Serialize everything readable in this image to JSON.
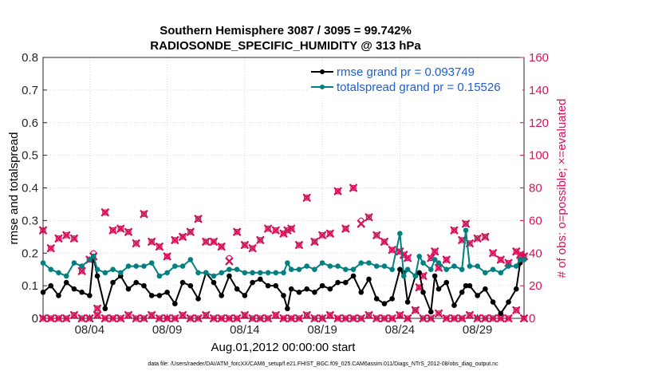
{
  "chart_data": {
    "type": "line",
    "title": "Southern Hemisphere 3087 / 3095 = 99.742%",
    "subtitle": "RADIOSONDE_SPECIFIC_HUMIDITY @ 313 hPa",
    "xlabel": "Aug.01,2012 00:00:00 start",
    "ylabel": "rmse and totalspread",
    "y2label": "# of obs: o=possible; ×=evaluated",
    "footnote": "data file: /Users/raeder/DAI/ATM_forcXX/CAM6_setup/f.e21.FHIST_BGC.f09_025.CAM6assim.011/Diags_NTrS_2012-08/obs_diag_output.nc",
    "xlim": [
      1.0,
      32.0
    ],
    "ylim": [
      0,
      0.8
    ],
    "y2lim": [
      0,
      160
    ],
    "x_tick_values": [
      4,
      9,
      14,
      19,
      24,
      29
    ],
    "x_tick_labels": [
      "08/04",
      "08/09",
      "08/14",
      "08/19",
      "08/24",
      "08/29"
    ],
    "y_tick_labels": [
      "0",
      "0.1",
      "0.2",
      "0.3",
      "0.4",
      "0.5",
      "0.6",
      "0.7",
      "0.8"
    ],
    "y2_tick_labels": [
      "0",
      "20",
      "40",
      "60",
      "80",
      "100",
      "120",
      "140",
      "160"
    ],
    "colors": {
      "rmse": "#000000",
      "spread": "#008080",
      "obs": "#d6135a",
      "legend_text": "#1f5fcf"
    },
    "series": [
      {
        "name": "rmse",
        "legend": "rmse grand pr = 0.093749",
        "axis": "left",
        "x": [
          1.0,
          1.5,
          2.0,
          2.5,
          3.0,
          3.5,
          4.0,
          4.25,
          4.5,
          5.0,
          5.5,
          6.0,
          6.5,
          7.0,
          7.5,
          8.0,
          8.5,
          9.0,
          9.5,
          10.0,
          10.5,
          11.0,
          11.5,
          12.0,
          12.5,
          13.0,
          13.5,
          14.0,
          14.5,
          15.0,
          15.5,
          16.0,
          16.5,
          16.75,
          17.0,
          17.5,
          18.0,
          18.5,
          19.0,
          19.5,
          20.0,
          20.5,
          21.0,
          21.5,
          22.0,
          22.5,
          23.0,
          23.5,
          24.0,
          24.25,
          24.5,
          25.0,
          25.25,
          25.5,
          26.0,
          26.25,
          26.5,
          27.0,
          27.5,
          28.0,
          28.25,
          28.5,
          29.0,
          29.5,
          30.0,
          30.5,
          31.0,
          31.5,
          31.75,
          32.0
        ],
        "values": [
          0.08,
          0.1,
          0.07,
          0.11,
          0.09,
          0.08,
          0.07,
          0.19,
          0.13,
          0.03,
          0.11,
          0.13,
          0.09,
          0.11,
          0.1,
          0.07,
          0.07,
          0.08,
          0.045,
          0.11,
          0.1,
          0.06,
          0.14,
          0.11,
          0.07,
          0.13,
          0.09,
          0.07,
          0.11,
          0.12,
          0.1,
          0.1,
          0.07,
          0.03,
          0.09,
          0.08,
          0.09,
          0.08,
          0.1,
          0.09,
          0.11,
          0.11,
          0.13,
          0.08,
          0.12,
          0.06,
          0.045,
          0.06,
          0.15,
          0.14,
          0.05,
          0.13,
          0.14,
          0.08,
          0.02,
          0.13,
          0.09,
          0.11,
          0.04,
          0.08,
          0.1,
          0.1,
          0.07,
          0.09,
          0.05,
          0.015,
          0.05,
          0.09,
          0.17,
          0.18
        ]
      },
      {
        "name": "totalspread",
        "legend": "totalspread grand pr = 0.15526",
        "axis": "left",
        "x": [
          1.0,
          1.5,
          2.0,
          2.5,
          3.0,
          3.5,
          4.0,
          4.25,
          4.5,
          5.0,
          5.5,
          6.0,
          6.5,
          7.0,
          7.5,
          8.0,
          8.5,
          9.0,
          9.5,
          10.0,
          10.5,
          11.0,
          11.5,
          12.0,
          12.5,
          13.0,
          13.5,
          14.0,
          14.5,
          15.0,
          15.5,
          16.0,
          16.5,
          16.75,
          17.0,
          17.5,
          18.0,
          18.5,
          19.0,
          19.5,
          20.0,
          20.5,
          21.0,
          21.5,
          22.0,
          22.5,
          23.0,
          23.5,
          24.0,
          24.25,
          24.5,
          25.0,
          25.25,
          25.5,
          26.0,
          26.25,
          26.5,
          27.0,
          27.5,
          28.0,
          28.25,
          28.5,
          29.0,
          29.5,
          30.0,
          30.5,
          31.0,
          31.5,
          31.75,
          32.0
        ],
        "values": [
          0.17,
          0.15,
          0.14,
          0.13,
          0.17,
          0.16,
          0.18,
          0.19,
          0.15,
          0.14,
          0.15,
          0.14,
          0.16,
          0.16,
          0.16,
          0.17,
          0.13,
          0.14,
          0.16,
          0.16,
          0.18,
          0.14,
          0.14,
          0.13,
          0.14,
          0.15,
          0.15,
          0.14,
          0.14,
          0.14,
          0.14,
          0.14,
          0.14,
          0.17,
          0.15,
          0.15,
          0.16,
          0.15,
          0.17,
          0.16,
          0.16,
          0.15,
          0.15,
          0.17,
          0.17,
          0.16,
          0.16,
          0.15,
          0.26,
          0.13,
          0.15,
          0.13,
          0.19,
          0.17,
          0.15,
          0.18,
          0.17,
          0.15,
          0.16,
          0.15,
          0.27,
          0.16,
          0.16,
          0.14,
          0.15,
          0.14,
          0.16,
          0.16,
          0.18,
          0.18
        ]
      },
      {
        "name": "obs_possible",
        "axis": "right",
        "marker": "circle",
        "x": [
          1.0,
          1.5,
          2.0,
          2.5,
          3.0,
          3.5,
          4.0,
          4.25,
          4.5,
          5.0,
          5.5,
          6.0,
          6.5,
          7.0,
          7.5,
          8.0,
          8.5,
          9.0,
          9.5,
          10.0,
          10.5,
          11.0,
          11.5,
          12.0,
          12.5,
          13.0,
          13.5,
          14.0,
          14.5,
          15.0,
          15.5,
          16.0,
          16.5,
          16.75,
          17.0,
          17.5,
          18.0,
          18.5,
          19.0,
          19.5,
          20.0,
          20.5,
          21.0,
          21.5,
          22.0,
          22.5,
          23.0,
          23.5,
          24.0,
          24.25,
          24.5,
          25.0,
          25.25,
          25.5,
          26.0,
          26.25,
          26.5,
          27.0,
          27.5,
          28.0,
          28.25,
          28.5,
          29.0,
          29.5,
          30.0,
          30.5,
          31.0,
          31.5,
          31.75,
          32.0
        ],
        "values": [
          54,
          43,
          49,
          51,
          49,
          29,
          36,
          40,
          6,
          65,
          54,
          55,
          53,
          46,
          64,
          47,
          44,
          38,
          48,
          50,
          53,
          61,
          47,
          47,
          44,
          37,
          53,
          45,
          43,
          48,
          55,
          54,
          52,
          54,
          55,
          45,
          74,
          47,
          51,
          52,
          78,
          55,
          80,
          60,
          62,
          51,
          47,
          42,
          41,
          39,
          37,
          5,
          19,
          26,
          37,
          41,
          31,
          36,
          54,
          48,
          58,
          46,
          49,
          50,
          40,
          36,
          34,
          41,
          39,
          38
        ]
      },
      {
        "name": "obs_evaluated",
        "axis": "right",
        "marker": "x",
        "x": [
          1.0,
          1.5,
          2.0,
          2.5,
          3.0,
          3.5,
          4.0,
          4.25,
          4.5,
          5.0,
          5.5,
          6.0,
          6.5,
          7.0,
          7.5,
          8.0,
          8.5,
          9.0,
          9.5,
          10.0,
          10.5,
          11.0,
          11.5,
          12.0,
          12.5,
          13.0,
          13.5,
          14.0,
          14.5,
          15.0,
          15.5,
          16.0,
          16.5,
          16.75,
          17.0,
          17.5,
          18.0,
          18.5,
          19.0,
          19.5,
          20.0,
          20.5,
          21.0,
          21.5,
          22.0,
          22.5,
          23.0,
          23.5,
          24.0,
          24.25,
          24.5,
          25.0,
          25.25,
          25.5,
          26.0,
          26.25,
          26.5,
          27.0,
          27.5,
          28.0,
          28.25,
          28.5,
          29.0,
          29.5,
          30.0,
          30.5,
          31.0,
          31.5,
          31.75,
          32.0
        ],
        "values": [
          54,
          43,
          49,
          51,
          49,
          29,
          36,
          38,
          6,
          65,
          54,
          55,
          53,
          46,
          64,
          47,
          44,
          38,
          48,
          50,
          53,
          61,
          47,
          47,
          44,
          35,
          53,
          45,
          43,
          48,
          55,
          54,
          52,
          54,
          55,
          45,
          74,
          47,
          51,
          52,
          78,
          55,
          80,
          58,
          62,
          51,
          47,
          42,
          41,
          39,
          37,
          5,
          19,
          26,
          37,
          41,
          31,
          36,
          54,
          48,
          58,
          46,
          49,
          50,
          40,
          36,
          34,
          41,
          39,
          38
        ]
      },
      {
        "name": "obs_zero_row",
        "axis": "right",
        "marker": "circle+x",
        "x": [
          1.0,
          1.5,
          2.0,
          2.5,
          3.0,
          3.5,
          4.0,
          4.5,
          5.0,
          5.5,
          6.0,
          6.5,
          7.0,
          7.5,
          8.0,
          8.5,
          9.0,
          9.5,
          10.0,
          10.5,
          11.0,
          11.5,
          12.0,
          12.5,
          13.0,
          13.5,
          14.0,
          14.5,
          15.0,
          15.5,
          16.0,
          16.5,
          17.0,
          17.5,
          18.0,
          18.5,
          19.0,
          19.5,
          20.0,
          20.5,
          21.0,
          21.5,
          22.0,
          22.5,
          23.0,
          23.5,
          24.0,
          24.5,
          25.0,
          25.5,
          26.0,
          26.5,
          27.0,
          27.5,
          28.0,
          28.5,
          29.0,
          29.5,
          30.0,
          30.5,
          31.0,
          31.5,
          32.0
        ],
        "values": [
          0,
          0,
          0,
          0,
          2,
          0,
          0,
          2,
          0,
          0,
          0,
          2,
          0,
          0,
          2,
          0,
          0,
          0,
          2,
          0,
          0,
          2,
          0,
          0,
          0,
          0,
          2,
          0,
          0,
          0,
          2,
          0,
          0,
          0,
          2,
          0,
          0,
          2,
          0,
          0,
          0,
          0,
          2,
          0,
          0,
          0,
          2,
          0,
          5,
          0,
          0,
          3,
          0,
          0,
          0,
          2,
          0,
          0,
          0,
          0,
          0,
          5,
          0
        ]
      }
    ]
  }
}
